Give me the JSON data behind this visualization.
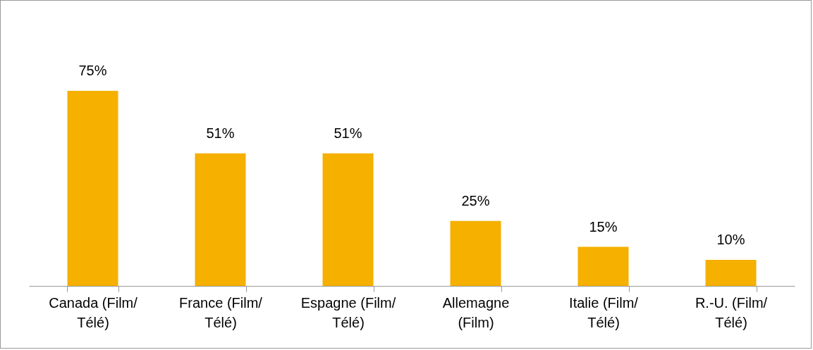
{
  "chart_data": {
    "type": "bar",
    "categories": [
      "Canada (Film/ Télé)",
      "France (Film/ Télé)",
      "Espagne (Film/ Télé)",
      "Allemagne (Film)",
      "Italie (Film/ Télé)",
      "R.-U. (Film/ Télé)"
    ],
    "values": [
      75,
      51,
      51,
      25,
      15,
      10
    ],
    "value_labels": [
      "75%",
      "51%",
      "51%",
      "25%",
      "15%",
      "10%"
    ],
    "color": "#f5b000",
    "grid": false
  }
}
